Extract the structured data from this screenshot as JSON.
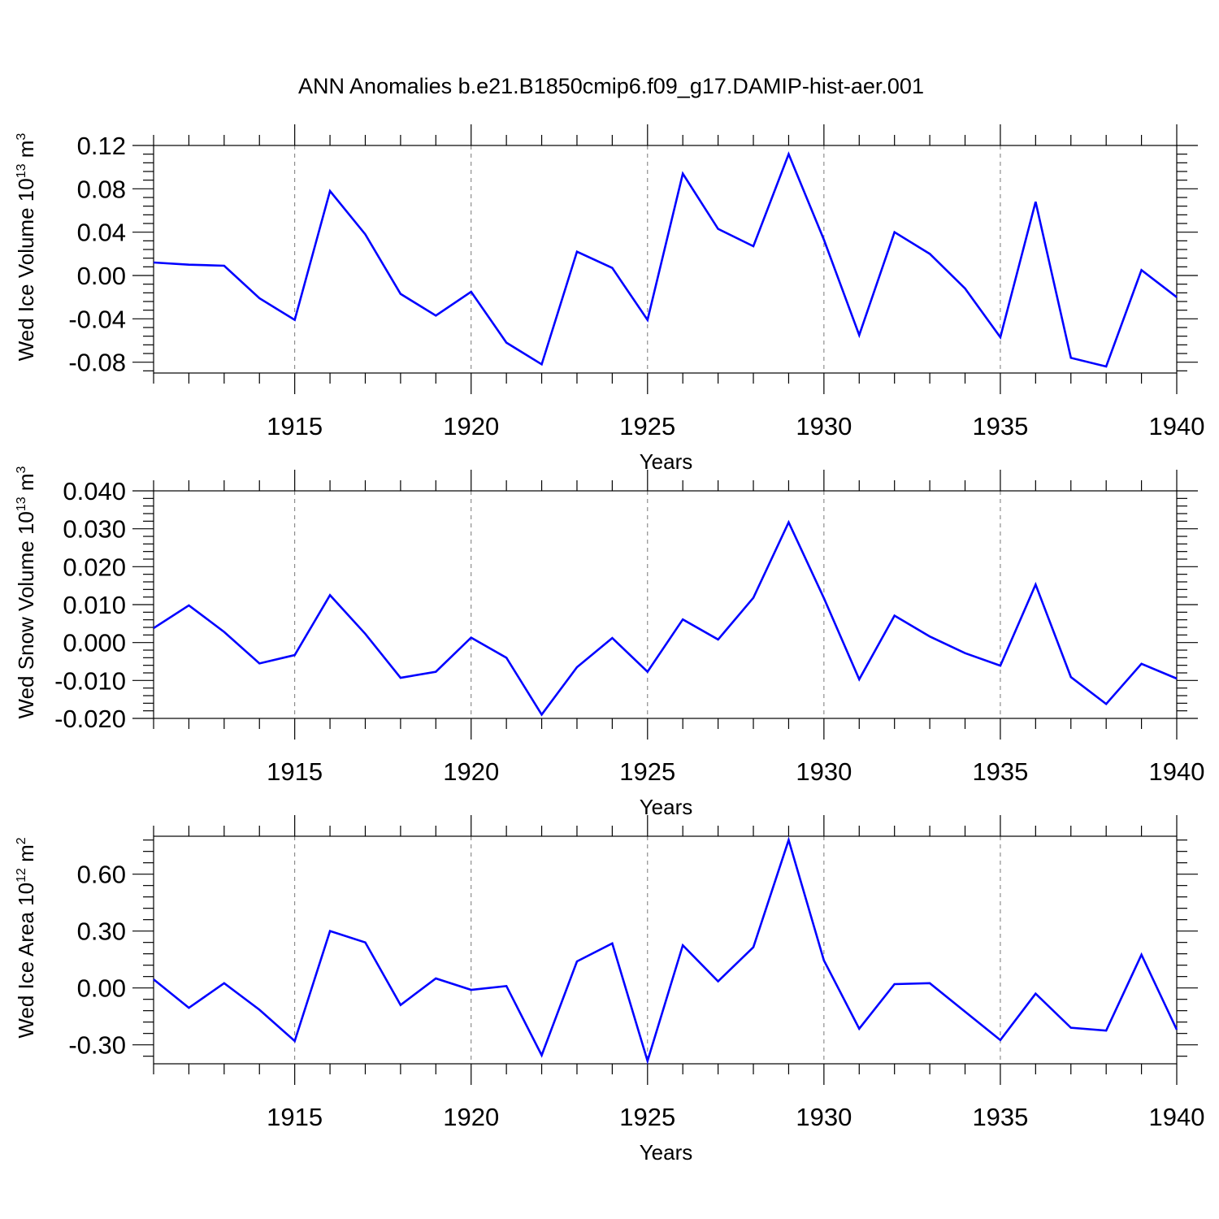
{
  "chart_data": [
    {
      "type": "line",
      "title": "ANN Anomalies b.e21.B1850cmip6.f09_g17.DAMIP-hist-aer.001",
      "xlabel": "Years",
      "ylabel": {
        "main": "Wed Ice Volume 10",
        "exponent": "13",
        "unit": " m",
        "unit_exponent": "3"
      },
      "xlim": [
        1911,
        1940
      ],
      "ylim": [
        -0.09,
        0.12
      ],
      "x_ticks": [
        1915,
        1920,
        1925,
        1930,
        1935,
        1940
      ],
      "y_ticks": [
        -0.08,
        -0.04,
        0.0,
        0.04,
        0.08,
        0.12
      ],
      "y_tick_labels": [
        "-0.08",
        "-0.04",
        "0.00",
        "0.04",
        "0.08",
        "0.12"
      ],
      "grid": "vertical dashed at major x ticks",
      "series": [
        {
          "name": "Wed Ice Volume",
          "color": "#0000ff",
          "x": [
            1911,
            1912,
            1913,
            1914,
            1915,
            1916,
            1917,
            1918,
            1919,
            1920,
            1921,
            1922,
            1923,
            1924,
            1925,
            1926,
            1927,
            1928,
            1929,
            1930,
            1931,
            1932,
            1933,
            1934,
            1935,
            1936,
            1937,
            1938,
            1939,
            1940
          ],
          "values": [
            0.012,
            0.01,
            0.009,
            -0.021,
            -0.041,
            0.078,
            0.038,
            -0.017,
            -0.037,
            -0.015,
            -0.062,
            -0.082,
            0.022,
            0.007,
            -0.041,
            0.094,
            0.043,
            0.027,
            0.112,
            0.033,
            -0.055,
            0.04,
            0.02,
            -0.012,
            -0.057,
            0.068,
            -0.076,
            -0.084,
            0.005,
            -0.02
          ]
        }
      ]
    },
    {
      "type": "line",
      "title": "",
      "xlabel": "Years",
      "ylabel": {
        "main": "Wed Snow Volume 10",
        "exponent": "13",
        "unit": " m",
        "unit_exponent": "3"
      },
      "xlim": [
        1911,
        1940
      ],
      "ylim": [
        -0.02,
        0.04
      ],
      "x_ticks": [
        1915,
        1920,
        1925,
        1930,
        1935,
        1940
      ],
      "y_ticks": [
        -0.02,
        -0.01,
        0.0,
        0.01,
        0.02,
        0.03,
        0.04
      ],
      "y_tick_labels": [
        "-0.020",
        "-0.010",
        "0.000",
        "0.010",
        "0.020",
        "0.030",
        "0.040"
      ],
      "grid": "vertical dashed at major x ticks",
      "series": [
        {
          "name": "Wed Snow Volume",
          "color": "#0000ff",
          "x": [
            1911,
            1912,
            1913,
            1914,
            1915,
            1916,
            1917,
            1918,
            1919,
            1920,
            1921,
            1922,
            1923,
            1924,
            1925,
            1926,
            1927,
            1928,
            1929,
            1930,
            1931,
            1932,
            1933,
            1934,
            1935,
            1936,
            1937,
            1938,
            1939,
            1940
          ],
          "values": [
            0.0038,
            0.0098,
            0.0028,
            -0.0055,
            -0.0033,
            0.0125,
            0.0023,
            -0.0093,
            -0.0077,
            0.0013,
            -0.004,
            -0.019,
            -0.0065,
            0.0012,
            -0.0077,
            0.0061,
            0.0008,
            0.0118,
            0.0317,
            0.0117,
            -0.0097,
            0.0071,
            0.0016,
            -0.0028,
            -0.0061,
            0.0153,
            -0.0091,
            -0.0162,
            -0.0056,
            -0.0095
          ]
        }
      ]
    },
    {
      "type": "line",
      "title": "",
      "xlabel": "Years",
      "ylabel": {
        "main": "Wed Ice Area 10",
        "exponent": "12",
        "unit": " m",
        "unit_exponent": "2"
      },
      "xlim": [
        1911,
        1940
      ],
      "ylim": [
        -0.4,
        0.8
      ],
      "x_ticks": [
        1915,
        1920,
        1925,
        1930,
        1935,
        1940
      ],
      "y_ticks": [
        -0.3,
        0.0,
        0.3,
        0.6
      ],
      "y_tick_labels": [
        "-0.30",
        "0.00",
        "0.30",
        "0.60"
      ],
      "grid": "vertical dashed at major x ticks",
      "series": [
        {
          "name": "Wed Ice Area",
          "color": "#0000ff",
          "x": [
            1911,
            1912,
            1913,
            1914,
            1915,
            1916,
            1917,
            1918,
            1919,
            1920,
            1921,
            1922,
            1923,
            1924,
            1925,
            1926,
            1927,
            1928,
            1929,
            1930,
            1931,
            1932,
            1933,
            1934,
            1935,
            1936,
            1937,
            1938,
            1939,
            1940
          ],
          "values": [
            0.045,
            -0.105,
            0.025,
            -0.115,
            -0.28,
            0.3,
            0.24,
            -0.09,
            0.05,
            -0.01,
            0.01,
            -0.355,
            0.14,
            0.235,
            -0.385,
            0.225,
            0.035,
            0.215,
            0.78,
            0.145,
            -0.215,
            0.02,
            0.025,
            -0.125,
            -0.275,
            -0.03,
            -0.21,
            -0.225,
            0.175,
            -0.22
          ]
        }
      ]
    }
  ]
}
